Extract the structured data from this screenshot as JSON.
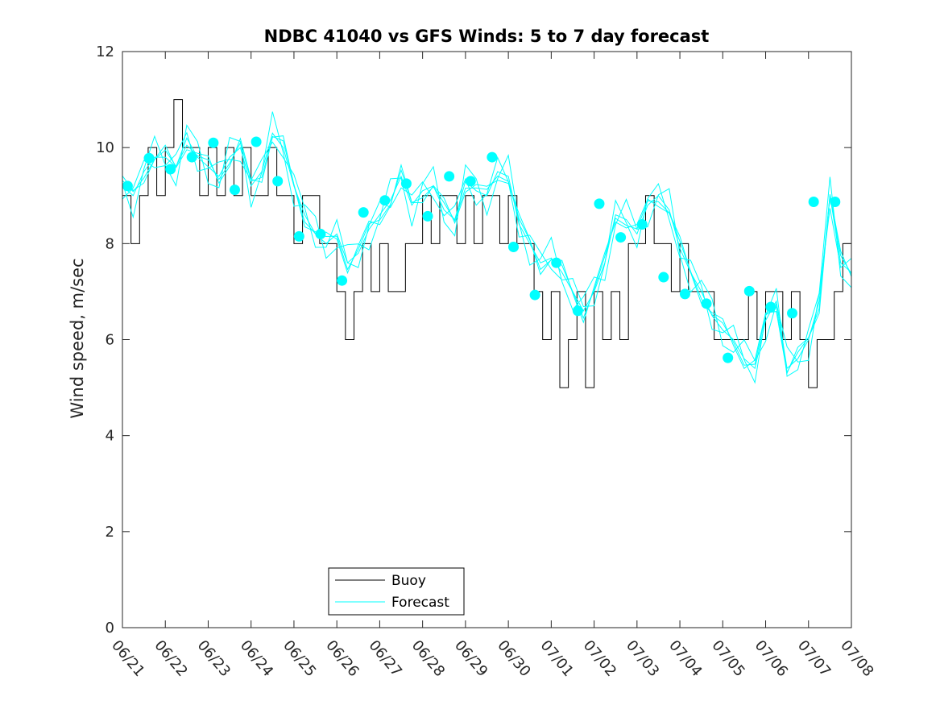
{
  "chart_data": {
    "type": "line",
    "title": "NDBC 41040 vs GFS Winds: 5 to 7 day forecast",
    "xlabel": "",
    "ylabel": "Wind speed, m/sec",
    "ylim": [
      0,
      12
    ],
    "yticks": [
      0,
      2,
      4,
      6,
      8,
      10,
      12
    ],
    "xlim": [
      "06/21",
      "07/08"
    ],
    "xtick_labels": [
      "06/21",
      "06/22",
      "06/23",
      "06/24",
      "06/25",
      "06/26",
      "06/27",
      "06/28",
      "06/29",
      "06/30",
      "07/01",
      "07/02",
      "07/03",
      "07/04",
      "07/05",
      "07/06",
      "07/07",
      "07/08"
    ],
    "grid": false,
    "legend": {
      "placement": "bottom-center",
      "entries": [
        "Buoy",
        "Forecast"
      ]
    },
    "colors": {
      "buoy": "#000000",
      "forecast": "#00ffff",
      "marker": "#00ffff"
    },
    "series": [
      {
        "name": "Buoy",
        "style": "stepped, hourly",
        "x_days": [
          0,
          0.2,
          0.4,
          0.6,
          0.8,
          1.0,
          1.2,
          1.4,
          1.6,
          1.8,
          2.0,
          2.2,
          2.4,
          2.6,
          2.8,
          3.0,
          3.2,
          3.4,
          3.6,
          3.8,
          4.0,
          4.2,
          4.4,
          4.6,
          4.8,
          5.0,
          5.2,
          5.4,
          5.6,
          5.8,
          6.0,
          6.2,
          6.4,
          6.6,
          6.8,
          7.0,
          7.2,
          7.4,
          7.6,
          7.8,
          8.0,
          8.2,
          8.4,
          8.6,
          8.8,
          9.0,
          9.2,
          9.4,
          9.6,
          9.8,
          10.0,
          10.2,
          10.4,
          10.6,
          10.8,
          11.0,
          11.2,
          11.4,
          11.6,
          11.8,
          12.0,
          12.2,
          12.4,
          12.6,
          12.8,
          13.0,
          13.2,
          13.4,
          13.6,
          13.8,
          14.0,
          14.2,
          14.4,
          14.6,
          14.8,
          15.0,
          15.2,
          15.4,
          15.6,
          15.8,
          16.0,
          16.2,
          16.4,
          16.6,
          16.8,
          17.0
        ],
        "values": [
          9,
          8,
          9,
          10,
          9,
          10,
          11,
          10,
          10,
          9,
          10,
          9,
          10,
          9,
          10,
          9,
          9,
          10,
          9,
          9,
          8,
          9,
          9,
          8,
          8,
          7,
          6,
          7,
          8,
          7,
          8,
          7,
          7,
          8,
          8,
          9,
          8,
          9,
          9,
          8,
          9,
          8,
          9,
          9,
          8,
          9,
          8,
          8,
          7,
          6,
          7,
          5,
          6,
          7,
          5,
          7,
          6,
          7,
          6,
          8,
          8,
          9,
          8,
          8,
          7,
          8,
          7,
          7,
          7,
          6,
          6,
          6,
          6,
          7,
          6,
          7,
          7,
          6,
          7,
          6,
          5,
          6,
          6,
          7,
          8,
          8
        ]
      },
      {
        "name": "Forecast",
        "style": "several overlapping forecast runs",
        "x_days": [
          0,
          0.25,
          0.5,
          0.75,
          1.0,
          1.25,
          1.5,
          1.75,
          2.0,
          2.25,
          2.5,
          2.75,
          3.0,
          3.25,
          3.5,
          3.75,
          4.0,
          4.25,
          4.5,
          4.75,
          5.0,
          5.25,
          5.5,
          5.75,
          6.0,
          6.25,
          6.5,
          6.75,
          7.0,
          7.25,
          7.5,
          7.75,
          8.0,
          8.25,
          8.5,
          8.75,
          9.0,
          9.25,
          9.5,
          9.75,
          10.0,
          10.25,
          10.5,
          10.75,
          11.0,
          11.25,
          11.5,
          11.75,
          12.0,
          12.25,
          12.5,
          12.75,
          13.0,
          13.25,
          13.5,
          13.75,
          14.0,
          14.25,
          14.5,
          14.75,
          15.0,
          15.25,
          15.5,
          15.75,
          16.0,
          16.25,
          16.5,
          16.75,
          17.0
        ],
        "values": [
          9.2,
          9.0,
          9.5,
          9.8,
          9.8,
          9.6,
          10.2,
          9.8,
          9.6,
          9.4,
          9.8,
          10.0,
          9.2,
          9.5,
          10.3,
          10.0,
          9.2,
          8.6,
          8.2,
          8.0,
          8.2,
          7.6,
          7.8,
          8.3,
          8.6,
          8.9,
          9.4,
          8.8,
          9.1,
          9.2,
          8.7,
          8.5,
          9.3,
          9.1,
          9.0,
          9.5,
          9.4,
          8.4,
          8.0,
          7.6,
          7.7,
          7.4,
          7.0,
          6.6,
          7.0,
          7.6,
          8.6,
          8.5,
          8.2,
          8.8,
          9.0,
          8.7,
          7.9,
          7.4,
          7.0,
          6.5,
          6.2,
          6.0,
          5.6,
          5.4,
          6.4,
          6.8,
          5.4,
          5.6,
          6.0,
          6.8,
          9.0,
          7.6,
          7.4
        ]
      },
      {
        "name": "Forecast markers",
        "style": "filled circles",
        "x_days": [
          0.12,
          0.62,
          1.12,
          1.62,
          2.12,
          2.62,
          3.12,
          3.62,
          4.12,
          4.62,
          5.12,
          5.62,
          6.12,
          6.62,
          7.12,
          7.62,
          8.12,
          8.62,
          9.12,
          9.62,
          10.12,
          10.62,
          11.12,
          11.62,
          12.12,
          12.62,
          13.12,
          13.62,
          14.12,
          14.62,
          15.12,
          15.62,
          16.12,
          16.62
        ],
        "values": [
          9.2,
          9.78,
          9.55,
          9.8,
          10.1,
          9.12,
          10.12,
          9.3,
          8.15,
          8.2,
          7.23,
          8.65,
          8.9,
          9.25,
          8.57,
          9.4,
          9.3,
          9.8,
          7.93,
          6.93,
          7.6,
          6.6,
          8.83,
          8.13,
          8.4,
          7.3,
          6.95,
          6.75,
          5.62,
          7.01,
          6.68,
          6.55,
          8.87,
          8.87
        ]
      }
    ]
  }
}
